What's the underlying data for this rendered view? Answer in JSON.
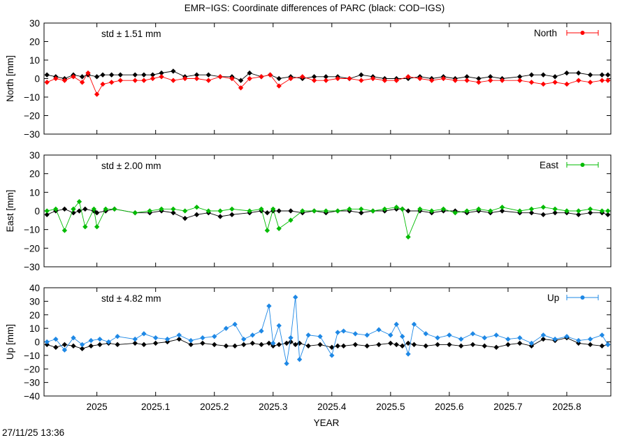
{
  "title": "EMR−IGS: Coordinate differences of PARC (black: COD−IGS)",
  "timestamp": "27/11/25 13:36",
  "colors": {
    "north": "#ff0000",
    "east": "#00bb00",
    "up": "#1e88e5",
    "reference": "#000000"
  },
  "chart_data": [
    {
      "type": "line",
      "panel": "north",
      "ylabel": "North [mm]",
      "xlabel": "",
      "xlim": [
        2024.91,
        2025.875
      ],
      "ylim": [
        -30,
        30
      ],
      "yticks": [
        30,
        20,
        10,
        0,
        -10,
        -20,
        -30
      ],
      "std_label": "std ± 1.51 mm",
      "legend": "North",
      "legend_position": "top-right",
      "series": [
        {
          "name": "North",
          "color": "#ff0000",
          "x": [
            2024.915,
            2024.93,
            2024.945,
            2024.96,
            2024.975,
            2024.985,
            2025.0,
            2025.01,
            2025.025,
            2025.04,
            2025.065,
            2025.08,
            2025.095,
            2025.11,
            2025.13,
            2025.15,
            2025.17,
            2025.19,
            2025.21,
            2025.23,
            2025.245,
            2025.26,
            2025.28,
            2025.295,
            2025.31,
            2025.33,
            2025.35,
            2025.37,
            2025.39,
            2025.41,
            2025.43,
            2025.45,
            2025.47,
            2025.49,
            2025.51,
            2025.53,
            2025.55,
            2025.57,
            2025.59,
            2025.61,
            2025.63,
            2025.65,
            2025.67,
            2025.69,
            2025.72,
            2025.74,
            2025.76,
            2025.78,
            2025.8,
            2025.82,
            2025.84,
            2025.86,
            2025.87
          ],
          "y": [
            -2,
            0,
            -1,
            1,
            -2,
            3,
            -8.5,
            -3,
            -2,
            -1,
            -1,
            -1,
            0,
            1,
            -1,
            0,
            0,
            -1,
            1,
            0,
            -5,
            0,
            1,
            2,
            -4,
            0,
            1,
            -1,
            -1,
            0,
            0,
            -1,
            0,
            -1,
            -1,
            1,
            0,
            -1,
            0,
            -1,
            -1,
            -2,
            -1,
            -1,
            -1,
            -2,
            -3,
            -2,
            -3,
            -1,
            -2,
            -1,
            -1
          ]
        },
        {
          "name": "COD−IGS",
          "color": "#000000",
          "x": [
            2024.915,
            2024.93,
            2024.945,
            2024.96,
            2024.975,
            2024.985,
            2025.0,
            2025.01,
            2025.025,
            2025.04,
            2025.065,
            2025.08,
            2025.095,
            2025.11,
            2025.13,
            2025.15,
            2025.17,
            2025.19,
            2025.21,
            2025.23,
            2025.245,
            2025.26,
            2025.28,
            2025.295,
            2025.31,
            2025.33,
            2025.35,
            2025.37,
            2025.39,
            2025.41,
            2025.43,
            2025.45,
            2025.47,
            2025.49,
            2025.51,
            2025.53,
            2025.55,
            2025.57,
            2025.59,
            2025.61,
            2025.63,
            2025.65,
            2025.67,
            2025.69,
            2025.72,
            2025.74,
            2025.76,
            2025.78,
            2025.8,
            2025.82,
            2025.84,
            2025.86,
            2025.87
          ],
          "y": [
            2,
            1,
            0,
            2,
            1,
            2,
            1,
            2,
            2,
            2,
            2,
            2,
            2,
            3,
            4,
            1,
            2,
            2,
            1,
            1,
            -1,
            3,
            1,
            2,
            0,
            1,
            0,
            1,
            1,
            1,
            0,
            2,
            1,
            0,
            0,
            0,
            1,
            0,
            1,
            0,
            1,
            0,
            1,
            0,
            1,
            2,
            2,
            1,
            3,
            3,
            2,
            2,
            2
          ]
        }
      ]
    },
    {
      "type": "line",
      "panel": "east",
      "ylabel": "East [mm]",
      "xlabel": "",
      "xlim": [
        2024.91,
        2025.875
      ],
      "ylim": [
        -30,
        30
      ],
      "yticks": [
        30,
        20,
        10,
        0,
        -10,
        -20,
        -30
      ],
      "std_label": "std ± 2.00 mm",
      "legend": "East",
      "legend_position": "top-right",
      "series": [
        {
          "name": "East",
          "color": "#00bb00",
          "x": [
            2024.915,
            2024.93,
            2024.945,
            2024.96,
            2024.97,
            2024.98,
            2024.995,
            2025.0,
            2025.015,
            2025.03,
            2025.065,
            2025.09,
            2025.11,
            2025.13,
            2025.15,
            2025.17,
            2025.19,
            2025.21,
            2025.23,
            2025.26,
            2025.28,
            2025.29,
            2025.3,
            2025.31,
            2025.33,
            2025.35,
            2025.37,
            2025.39,
            2025.41,
            2025.43,
            2025.45,
            2025.47,
            2025.49,
            2025.51,
            2025.52,
            2025.53,
            2025.55,
            2025.57,
            2025.59,
            2025.61,
            2025.63,
            2025.65,
            2025.67,
            2025.69,
            2025.72,
            2025.74,
            2025.76,
            2025.78,
            2025.8,
            2025.82,
            2025.84,
            2025.86,
            2025.87
          ],
          "y": [
            0,
            1,
            -10.5,
            1,
            5,
            -8.5,
            1,
            -8.5,
            1,
            1,
            -1,
            0,
            1,
            1,
            0,
            2,
            0,
            0,
            1,
            0,
            1,
            -10.5,
            1,
            -9.5,
            -5,
            0,
            0,
            0,
            0,
            1,
            1,
            0,
            1,
            2,
            1,
            -14,
            1,
            0,
            1,
            -1,
            0,
            1,
            0,
            2,
            0,
            1,
            2,
            1,
            0,
            0,
            1,
            0,
            0
          ]
        },
        {
          "name": "COD−IGS",
          "color": "#000000",
          "x": [
            2024.915,
            2024.93,
            2024.945,
            2024.96,
            2024.97,
            2024.98,
            2024.995,
            2025.0,
            2025.015,
            2025.03,
            2025.065,
            2025.09,
            2025.11,
            2025.13,
            2025.15,
            2025.17,
            2025.19,
            2025.21,
            2025.23,
            2025.26,
            2025.28,
            2025.29,
            2025.3,
            2025.31,
            2025.33,
            2025.35,
            2025.37,
            2025.39,
            2025.41,
            2025.43,
            2025.45,
            2025.47,
            2025.49,
            2025.51,
            2025.52,
            2025.53,
            2025.55,
            2025.57,
            2025.59,
            2025.61,
            2025.63,
            2025.65,
            2025.67,
            2025.69,
            2025.72,
            2025.74,
            2025.76,
            2025.78,
            2025.8,
            2025.82,
            2025.84,
            2025.86,
            2025.87
          ],
          "y": [
            -2,
            0,
            1,
            -1,
            0,
            1,
            0,
            -1,
            0,
            1,
            -1,
            -1,
            0,
            -1,
            -4,
            -2,
            -1,
            -3,
            -2,
            -1,
            0,
            -1,
            0,
            0,
            0,
            -1,
            0,
            -1,
            0,
            0,
            -1,
            0,
            0,
            1,
            1,
            0,
            0,
            -1,
            0,
            0,
            -1,
            0,
            -1,
            0,
            -1,
            -1,
            -2,
            -1,
            -1,
            -2,
            -1,
            -1,
            -2
          ]
        }
      ]
    },
    {
      "type": "line",
      "panel": "up",
      "ylabel": "Up [mm]",
      "xlabel": "YEAR",
      "xlim": [
        2024.91,
        2025.875
      ],
      "ylim": [
        -40,
        40
      ],
      "yticks": [
        40,
        30,
        20,
        10,
        0,
        -10,
        -20,
        -30,
        -40
      ],
      "xticks": [
        2025,
        2025.1,
        2025.2,
        2025.3,
        2025.4,
        2025.5,
        2025.6,
        2025.7,
        2025.8
      ],
      "xtick_labels": [
        "2025",
        "2025.1",
        "2025.2",
        "2025.3",
        "2025.4",
        "2025.5",
        "2025.6",
        "2025.7",
        "2025.8"
      ],
      "std_label": "std ± 4.82 mm",
      "legend": "Up",
      "legend_position": "top-right",
      "series": [
        {
          "name": "Up",
          "color": "#1e88e5",
          "x": [
            2024.915,
            2024.93,
            2024.945,
            2024.96,
            2024.975,
            2024.99,
            2025.005,
            2025.02,
            2025.035,
            2025.065,
            2025.08,
            2025.1,
            2025.12,
            2025.14,
            2025.16,
            2025.18,
            2025.2,
            2025.22,
            2025.235,
            2025.25,
            2025.265,
            2025.28,
            2025.293,
            2025.3,
            2025.31,
            2025.323,
            2025.33,
            2025.338,
            2025.345,
            2025.36,
            2025.38,
            2025.4,
            2025.41,
            2025.42,
            2025.44,
            2025.46,
            2025.48,
            2025.5,
            2025.51,
            2025.52,
            2025.53,
            2025.54,
            2025.56,
            2025.58,
            2025.6,
            2025.62,
            2025.64,
            2025.66,
            2025.68,
            2025.7,
            2025.72,
            2025.74,
            2025.76,
            2025.78,
            2025.8,
            2025.82,
            2025.84,
            2025.86,
            2025.87
          ],
          "y": [
            0,
            2,
            -6,
            3,
            -2,
            1,
            2,
            0,
            4,
            2,
            6,
            3,
            2,
            5,
            1,
            3,
            4,
            10,
            13,
            2,
            5,
            8,
            26.5,
            -1,
            12,
            -16,
            3,
            33,
            -13,
            5,
            4,
            -10,
            7,
            8,
            6,
            5,
            9,
            5,
            13,
            4,
            -9,
            13,
            6,
            3,
            5,
            2,
            6,
            3,
            5,
            2,
            3,
            -1,
            5,
            2,
            4,
            1,
            2,
            5,
            -2
          ]
        },
        {
          "name": "COD−IGS",
          "color": "#000000",
          "x": [
            2024.915,
            2024.93,
            2024.945,
            2024.96,
            2024.975,
            2024.99,
            2025.005,
            2025.02,
            2025.035,
            2025.065,
            2025.08,
            2025.1,
            2025.12,
            2025.14,
            2025.16,
            2025.18,
            2025.2,
            2025.22,
            2025.235,
            2025.25,
            2025.265,
            2025.28,
            2025.293,
            2025.3,
            2025.31,
            2025.323,
            2025.33,
            2025.338,
            2025.345,
            2025.36,
            2025.38,
            2025.4,
            2025.41,
            2025.42,
            2025.44,
            2025.46,
            2025.48,
            2025.5,
            2025.51,
            2025.52,
            2025.53,
            2025.54,
            2025.56,
            2025.58,
            2025.6,
            2025.62,
            2025.64,
            2025.66,
            2025.68,
            2025.7,
            2025.72,
            2025.74,
            2025.76,
            2025.78,
            2025.8,
            2025.82,
            2025.84,
            2025.86,
            2025.87
          ],
          "y": [
            -2,
            -4,
            -2,
            -3,
            -5,
            -3,
            -2,
            -1,
            -2,
            -1,
            -2,
            -1,
            0,
            2,
            -2,
            -1,
            -2,
            -3,
            -3,
            -2,
            -1,
            -2,
            -1,
            -3,
            -2,
            -1,
            0,
            -2,
            -1,
            -3,
            -2,
            -4,
            -3,
            -3,
            -2,
            -3,
            -2,
            -1,
            -2,
            -3,
            -1,
            -2,
            -3,
            -2,
            -2,
            -3,
            -2,
            -3,
            -4,
            -2,
            -1,
            -3,
            2,
            1,
            3,
            -1,
            -2,
            -3,
            -2
          ]
        }
      ]
    }
  ]
}
